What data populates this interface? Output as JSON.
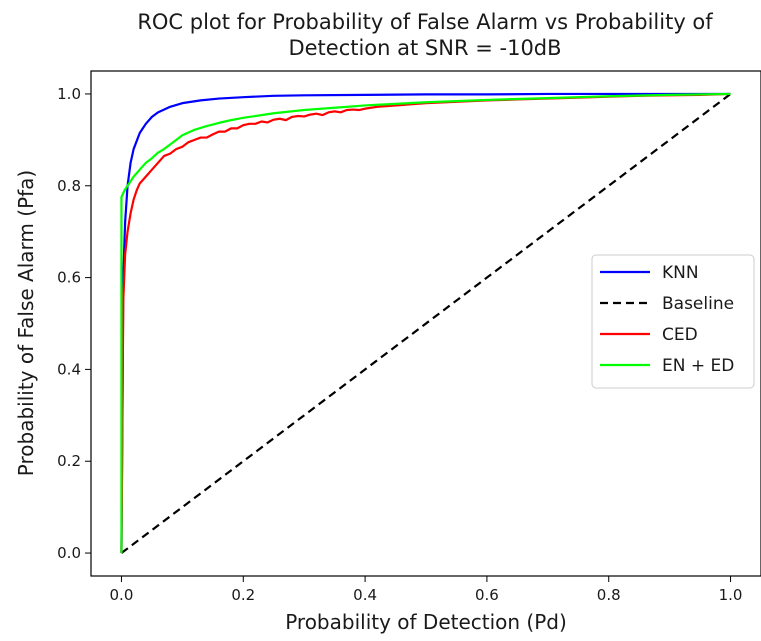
{
  "chart_data": {
    "type": "line",
    "title": [
      "ROC plot for Probability of False Alarm vs Probability of",
      "Detection at SNR = -10dB"
    ],
    "xlabel": "Probability of Detection (Pd)",
    "ylabel": "Probability of False Alarm (Pfa)",
    "xlim": [
      -0.05,
      1.05
    ],
    "ylim": [
      -0.05,
      1.05
    ],
    "xticks": [
      0.0,
      0.2,
      0.4,
      0.6,
      0.8,
      1.0
    ],
    "xtick_labels": [
      "0.0",
      "0.2",
      "0.4",
      "0.6",
      "0.8",
      "1.0"
    ],
    "yticks": [
      0.0,
      0.2,
      0.4,
      0.6,
      0.8,
      1.0
    ],
    "ytick_labels": [
      "0.0",
      "0.2",
      "0.4",
      "0.6",
      "0.8",
      "1.0"
    ],
    "grid": false,
    "legend_position": "center-right",
    "series": [
      {
        "name": "KNN",
        "color": "#0000ff",
        "dash": "solid",
        "x": [
          0.0,
          0.003,
          0.006,
          0.01,
          0.015,
          0.02,
          0.03,
          0.04,
          0.05,
          0.06,
          0.08,
          0.1,
          0.13,
          0.16,
          0.2,
          0.25,
          0.3,
          0.4,
          0.5,
          0.6,
          0.7,
          0.8,
          0.9,
          1.0
        ],
        "y": [
          0.0,
          0.6,
          0.72,
          0.8,
          0.85,
          0.88,
          0.915,
          0.935,
          0.95,
          0.96,
          0.972,
          0.98,
          0.986,
          0.99,
          0.993,
          0.996,
          0.997,
          0.998,
          0.999,
          0.999,
          1.0,
          1.0,
          1.0,
          1.0
        ]
      },
      {
        "name": "Baseline",
        "color": "#000000",
        "dash": "dashed",
        "x": [
          0.0,
          1.0
        ],
        "y": [
          0.0,
          1.0
        ]
      },
      {
        "name": "CED",
        "color": "#ff0000",
        "dash": "solid",
        "x": [
          0.0,
          0.003,
          0.006,
          0.01,
          0.015,
          0.02,
          0.025,
          0.03,
          0.04,
          0.05,
          0.06,
          0.07,
          0.08,
          0.09,
          0.1,
          0.11,
          0.12,
          0.13,
          0.14,
          0.15,
          0.16,
          0.17,
          0.18,
          0.19,
          0.2,
          0.21,
          0.22,
          0.23,
          0.24,
          0.25,
          0.26,
          0.27,
          0.28,
          0.29,
          0.3,
          0.31,
          0.32,
          0.33,
          0.34,
          0.35,
          0.36,
          0.37,
          0.38,
          0.39,
          0.4,
          0.42,
          0.44,
          0.46,
          0.48,
          0.5,
          0.55,
          0.6,
          0.65,
          0.7,
          0.75,
          0.8,
          0.85,
          0.9,
          0.95,
          1.0
        ],
        "y": [
          0.0,
          0.55,
          0.65,
          0.7,
          0.74,
          0.77,
          0.79,
          0.805,
          0.82,
          0.835,
          0.85,
          0.865,
          0.87,
          0.88,
          0.885,
          0.895,
          0.9,
          0.905,
          0.905,
          0.912,
          0.918,
          0.918,
          0.925,
          0.925,
          0.932,
          0.935,
          0.935,
          0.94,
          0.938,
          0.944,
          0.946,
          0.943,
          0.95,
          0.952,
          0.951,
          0.955,
          0.957,
          0.954,
          0.96,
          0.962,
          0.96,
          0.965,
          0.966,
          0.965,
          0.968,
          0.972,
          0.974,
          0.976,
          0.978,
          0.98,
          0.983,
          0.986,
          0.988,
          0.99,
          0.992,
          0.994,
          0.996,
          0.997,
          0.998,
          1.0
        ]
      },
      {
        "name": "EN + ED",
        "color": "#00ff00",
        "dash": "solid",
        "x": [
          0.0,
          0.0,
          0.005,
          0.01,
          0.02,
          0.03,
          0.04,
          0.05,
          0.06,
          0.07,
          0.08,
          0.09,
          0.1,
          0.12,
          0.14,
          0.16,
          0.18,
          0.2,
          0.25,
          0.3,
          0.35,
          0.4,
          0.5,
          0.6,
          0.7,
          0.8,
          0.9,
          1.0
        ],
        "y": [
          0.0,
          0.775,
          0.79,
          0.8,
          0.82,
          0.835,
          0.85,
          0.86,
          0.872,
          0.88,
          0.89,
          0.9,
          0.91,
          0.922,
          0.93,
          0.937,
          0.943,
          0.948,
          0.958,
          0.965,
          0.97,
          0.975,
          0.982,
          0.987,
          0.991,
          0.995,
          0.998,
          1.0
        ]
      }
    ]
  }
}
